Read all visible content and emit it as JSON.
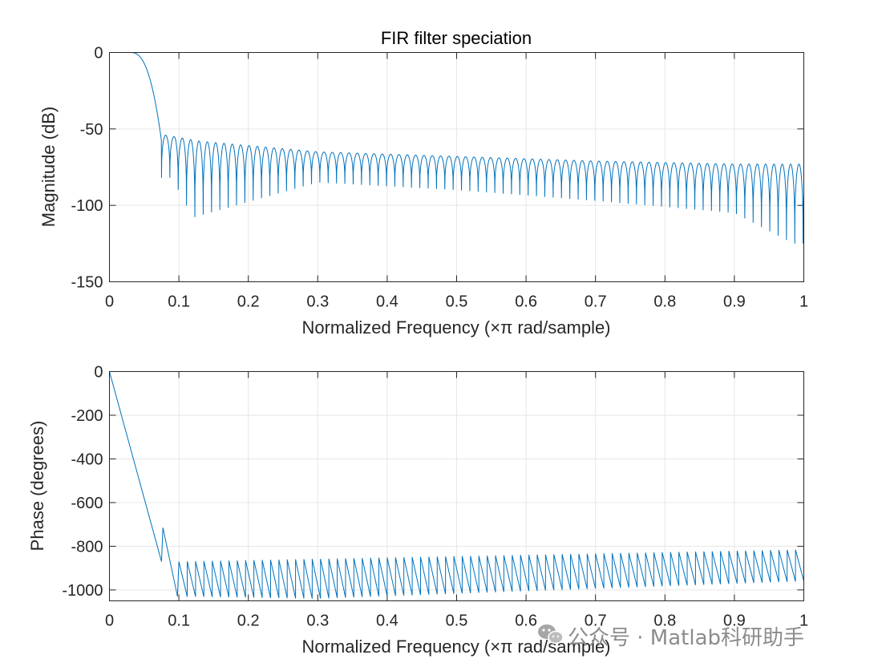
{
  "watermark": "公众号 · Matlab科研助手",
  "chart_data": [
    {
      "type": "line",
      "title": "FIR filter speciation",
      "xlabel": "Normalized Frequency  (×π rad/sample)",
      "ylabel": "Magnitude (dB)",
      "xlim": [
        0,
        1
      ],
      "ylim": [
        -150,
        0
      ],
      "grid": true,
      "xticks": [
        0,
        0.1,
        0.2,
        0.3,
        0.4,
        0.5,
        0.6,
        0.7,
        0.8,
        0.9,
        1
      ],
      "xtick_labels": [
        "0",
        "0.1",
        "0.2",
        "0.3",
        "0.4",
        "0.5",
        "0.6",
        "0.7",
        "0.8",
        "0.9",
        "1"
      ],
      "yticks": [
        0,
        -50,
        -100,
        -150
      ],
      "ytick_labels": [
        "0",
        "-50",
        "-100",
        "-150"
      ],
      "series": [
        {
          "name": "Magnitude",
          "color": "#0072bd",
          "passband_edge": 0.03,
          "stopband_start": 0.075,
          "lobe_width": 0.012,
          "sidelobe_peaks": [
            [
              0.08,
              -54
            ],
            [
              0.13,
              -58
            ],
            [
              0.3,
              -65
            ],
            [
              0.5,
              -68
            ],
            [
              0.7,
              -71
            ],
            [
              0.9,
              -73
            ],
            [
              1.0,
              -73
            ]
          ],
          "null_depths": [
            [
              0.09,
              -82
            ],
            [
              0.12,
              -108
            ],
            [
              0.3,
              -85
            ],
            [
              0.5,
              -90
            ],
            [
              0.7,
              -97
            ],
            [
              0.9,
              -105
            ],
            [
              0.985,
              -125
            ]
          ]
        }
      ]
    },
    {
      "type": "line",
      "title": "",
      "xlabel": "Normalized Frequency  (×π rad/sample)",
      "ylabel": "Phase (degrees)",
      "xlim": [
        0,
        1
      ],
      "ylim": [
        -1050,
        0
      ],
      "grid": true,
      "xticks": [
        0,
        0.1,
        0.2,
        0.3,
        0.4,
        0.5,
        0.6,
        0.7,
        0.8,
        0.9,
        1
      ],
      "xtick_labels": [
        "0",
        "0.1",
        "0.2",
        "0.3",
        "0.4",
        "0.5",
        "0.6",
        "0.7",
        "0.8",
        "0.9",
        "1"
      ],
      "yticks": [
        0,
        -200,
        -400,
        -600,
        -800,
        -1000
      ],
      "ytick_labels": [
        "0",
        "-200",
        "-400",
        "-600",
        "-800",
        "-1000"
      ],
      "series": [
        {
          "name": "Phase",
          "color": "#0072bd",
          "linear_phase": [
            [
              0,
              0
            ],
            [
              0.075,
              -870
            ]
          ],
          "first_jump": [
            0.077,
            -715
          ],
          "sawtooth_top": [
            [
              0.1,
              -870
            ],
            [
              1.0,
              -815
            ]
          ],
          "sawtooth_bottom": [
            [
              0.1,
              -1030
            ],
            [
              0.3,
              -1040
            ],
            [
              1.0,
              -960
            ]
          ],
          "lobe_width": 0.012
        }
      ]
    }
  ]
}
